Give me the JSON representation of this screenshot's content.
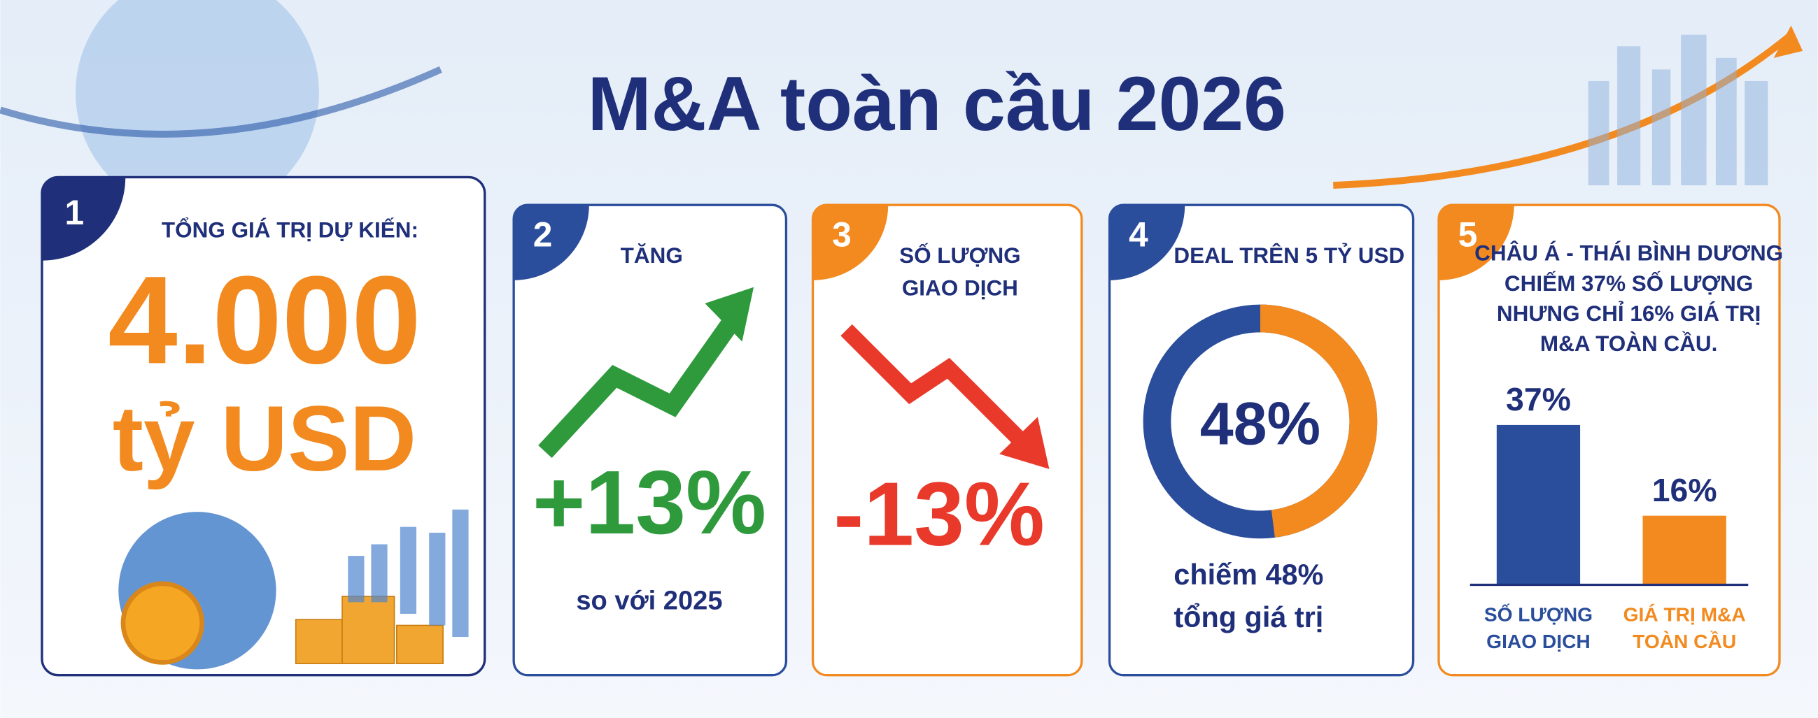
{
  "title": "M&A toàn cầu 2026",
  "cards": [
    {
      "number": "1",
      "heading": "TỔNG GIÁ TRỊ DỰ KIẾN:",
      "value": "4.000",
      "unit": "tỷ USD"
    },
    {
      "number": "2",
      "heading": "TĂNG",
      "value": "+13%",
      "note": "so với 2025"
    },
    {
      "number": "3",
      "heading": [
        "SỐ LƯỢNG",
        "GIAO DỊCH"
      ],
      "value": "-13%"
    },
    {
      "number": "4",
      "heading": "DEAL TRÊN 5 TỶ USD",
      "donut": {
        "value": 48,
        "label": "48%",
        "color": "#f28a1f",
        "track_color": "#2a4d9c"
      },
      "note": [
        "chiếm 48%",
        "tổng giá trị"
      ]
    },
    {
      "number": "5",
      "heading": [
        "CHÂU Á - THÁI BÌNH DƯƠNG",
        "CHIẾM 37% SỐ LƯỢNG",
        "NHƯNG CHỈ 16% GIÁ TRỊ",
        "M&A TOÀN CẦU."
      ],
      "bars": [
        {
          "value": 37,
          "label": "37%",
          "name": [
            "SỐ LƯỢNG",
            "GIAO DỊCH"
          ],
          "color": "#2a4d9c"
        },
        {
          "value": 16,
          "label": "16%",
          "name": [
            "GIÁ TRỊ M&A",
            "TOÀN CẦU"
          ],
          "color": "#f28a1f"
        }
      ]
    }
  ]
}
